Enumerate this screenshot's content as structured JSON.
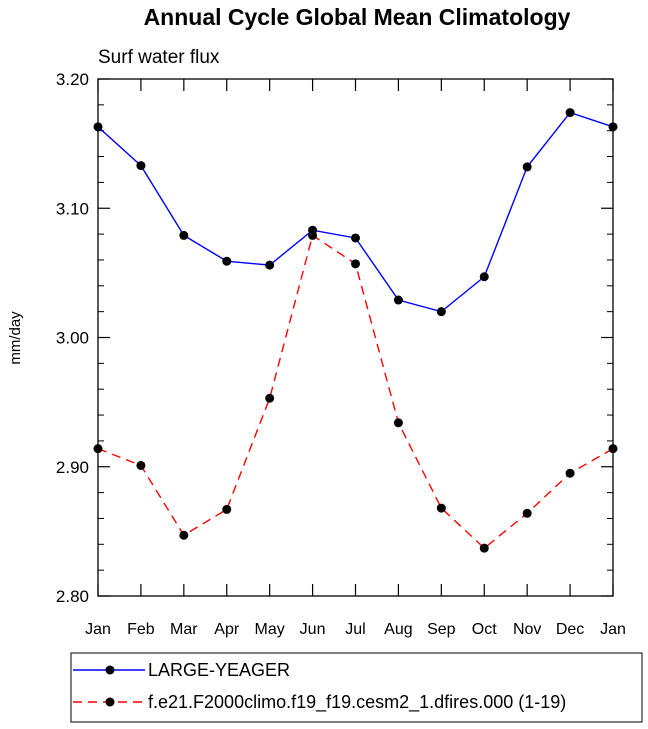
{
  "chart_data": {
    "type": "line",
    "title": "Annual Cycle Global Mean Climatology",
    "subtitle": "Surf water flux",
    "xlabel": "",
    "ylabel": "mm/day",
    "categories": [
      "Jan",
      "Feb",
      "Mar",
      "Apr",
      "May",
      "Jun",
      "Jul",
      "Aug",
      "Sep",
      "Oct",
      "Nov",
      "Dec",
      "Jan"
    ],
    "ylim": [
      2.8,
      3.2
    ],
    "yticks": [
      "2.80",
      "2.90",
      "3.00",
      "3.10",
      "3.20"
    ],
    "ytick_values": [
      2.8,
      2.9,
      3.0,
      3.1,
      3.2
    ],
    "minor_step": 0.02,
    "grid": false,
    "legend_position": "bottom",
    "series": [
      {
        "name": "LARGE-YEAGER",
        "color": "#0000ff",
        "dash": "solid",
        "marker": "circle",
        "values": [
          3.163,
          3.133,
          3.079,
          3.059,
          3.056,
          3.083,
          3.077,
          3.029,
          3.02,
          3.047,
          3.132,
          3.174,
          3.163
        ]
      },
      {
        "name": "f.e21.F2000climo.f19_f19.cesm2_1.dfires.000 (1-19)",
        "color": "#ff0000",
        "dash": "dashed",
        "marker": "circle",
        "values": [
          2.914,
          2.901,
          2.847,
          2.867,
          2.953,
          3.079,
          3.057,
          2.934,
          2.868,
          2.837,
          2.864,
          2.895,
          2.914
        ]
      }
    ]
  }
}
